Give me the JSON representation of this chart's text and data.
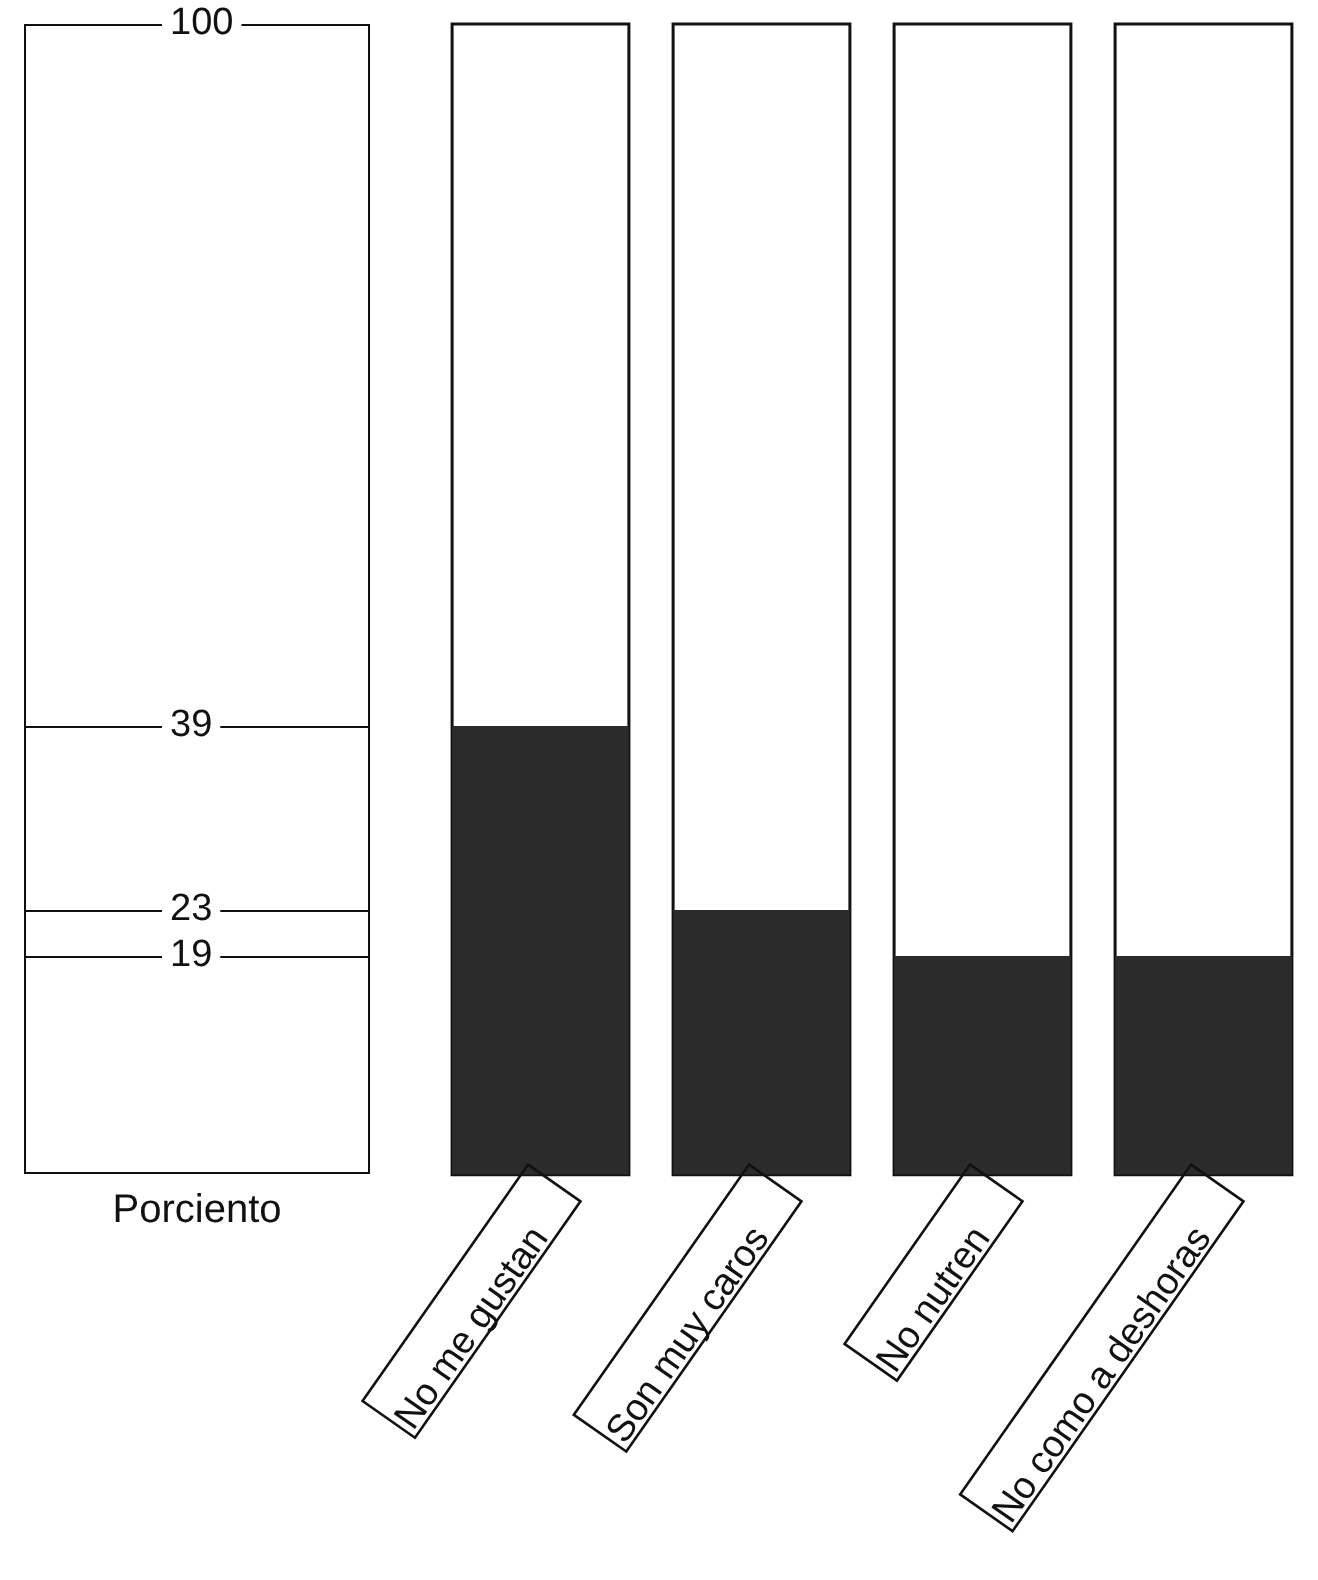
{
  "chart_data": {
    "type": "bar",
    "ylabel": "Porciento",
    "categories": [
      "No me gustan",
      "Son muy caros",
      "No nutren",
      "No como a deshoras"
    ],
    "values": [
      39,
      23,
      19,
      19
    ],
    "color": "#2b2b2b",
    "ylim": [
      0,
      100
    ],
    "yticks": [
      19,
      23,
      39,
      100
    ],
    "grid": false,
    "legend": false
  }
}
